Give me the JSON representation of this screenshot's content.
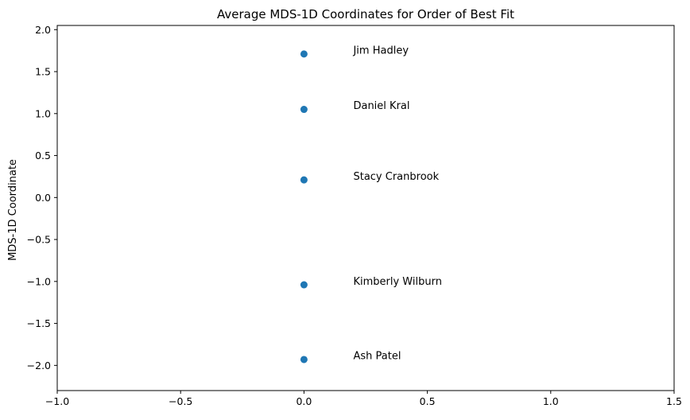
{
  "chart_data": {
    "type": "scatter",
    "title": "Average MDS-1D Coordinates for Order of Best Fit",
    "xlabel": "",
    "ylabel": "MDS-1D Coordinate",
    "xlim": [
      -1.0,
      1.5
    ],
    "ylim": [
      -2.3,
      2.05
    ],
    "xticks": [
      -1.0,
      -0.5,
      0.0,
      0.5,
      1.0,
      1.5
    ],
    "xtick_labels": [
      "−1.0",
      "−0.5",
      "0.0",
      "0.5",
      "1.0",
      "1.5"
    ],
    "yticks": [
      -2.0,
      -1.5,
      -1.0,
      -0.5,
      0.0,
      0.5,
      1.0,
      1.5,
      2.0
    ],
    "ytick_labels": [
      "−2.0",
      "−1.5",
      "−1.0",
      "−0.5",
      "0.0",
      "0.5",
      "1.0",
      "1.5",
      "2.0"
    ],
    "grid": false,
    "marker_color": "#1f77b4",
    "points": [
      {
        "label": "Jim Hadley",
        "x": 0.0,
        "y": 1.71
      },
      {
        "label": "Daniel Kral",
        "x": 0.0,
        "y": 1.05
      },
      {
        "label": "Stacy Cranbrook",
        "x": 0.0,
        "y": 0.21
      },
      {
        "label": "Kimberly Wilburn",
        "x": 0.0,
        "y": -1.04
      },
      {
        "label": "Ash Patel",
        "x": 0.0,
        "y": -1.93
      }
    ]
  }
}
